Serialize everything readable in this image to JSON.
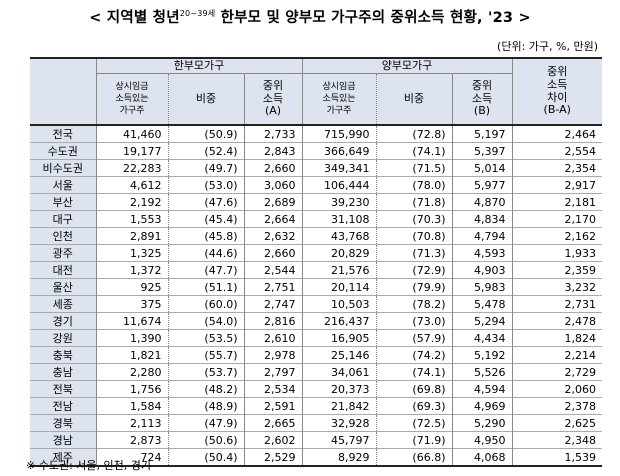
{
  "title": {
    "main": "< 지역별 청년",
    "sup": "20~39세",
    "rest": " 한부모 및 양부모 가구주의 중위소득 현황, '23 >"
  },
  "unit": "(단위: 가구, %, 만원)",
  "headers": {
    "single_group": "한부모가구",
    "double_group": "양부모가구",
    "regular_wage": "상시임금\n소득있는\n가구주",
    "ratio": "비중",
    "median_a": "중위\n소득\n(A)",
    "median_b": "중위\n소득\n(B)",
    "diff": "중위\n소득\n차이\n(B-A)"
  },
  "rows": [
    {
      "region": "전국",
      "s_cnt": "41,460",
      "s_pct": "(50.9)",
      "s_med": "2,733",
      "d_cnt": "715,990",
      "d_pct": "(72.8)",
      "d_med": "5,197",
      "diff": "2,464"
    },
    {
      "region": "수도권",
      "s_cnt": "19,177",
      "s_pct": "(52.4)",
      "s_med": "2,843",
      "d_cnt": "366,649",
      "d_pct": "(74.1)",
      "d_med": "5,397",
      "diff": "2,554"
    },
    {
      "region": "비수도권",
      "s_cnt": "22,283",
      "s_pct": "(49.7)",
      "s_med": "2,660",
      "d_cnt": "349,341",
      "d_pct": "(71.5)",
      "d_med": "5,014",
      "diff": "2,354"
    },
    {
      "region": "서울",
      "s_cnt": "4,612",
      "s_pct": "(53.0)",
      "s_med": "3,060",
      "d_cnt": "106,444",
      "d_pct": "(78.0)",
      "d_med": "5,977",
      "diff": "2,917"
    },
    {
      "region": "부산",
      "s_cnt": "2,192",
      "s_pct": "(47.6)",
      "s_med": "2,689",
      "d_cnt": "39,230",
      "d_pct": "(71.8)",
      "d_med": "4,870",
      "diff": "2,181"
    },
    {
      "region": "대구",
      "s_cnt": "1,553",
      "s_pct": "(45.4)",
      "s_med": "2,664",
      "d_cnt": "31,108",
      "d_pct": "(70.3)",
      "d_med": "4,834",
      "diff": "2,170"
    },
    {
      "region": "인천",
      "s_cnt": "2,891",
      "s_pct": "(45.8)",
      "s_med": "2,632",
      "d_cnt": "43,768",
      "d_pct": "(70.8)",
      "d_med": "4,794",
      "diff": "2,162"
    },
    {
      "region": "광주",
      "s_cnt": "1,325",
      "s_pct": "(44.6)",
      "s_med": "2,660",
      "d_cnt": "20,829",
      "d_pct": "(71.3)",
      "d_med": "4,593",
      "diff": "1,933"
    },
    {
      "region": "대전",
      "s_cnt": "1,372",
      "s_pct": "(47.7)",
      "s_med": "2,544",
      "d_cnt": "21,576",
      "d_pct": "(72.9)",
      "d_med": "4,903",
      "diff": "2,359"
    },
    {
      "region": "울산",
      "s_cnt": "925",
      "s_pct": "(51.1)",
      "s_med": "2,751",
      "d_cnt": "20,114",
      "d_pct": "(79.9)",
      "d_med": "5,983",
      "diff": "3,232"
    },
    {
      "region": "세종",
      "s_cnt": "375",
      "s_pct": "(60.0)",
      "s_med": "2,747",
      "d_cnt": "10,503",
      "d_pct": "(78.2)",
      "d_med": "5,478",
      "diff": "2,731"
    },
    {
      "region": "경기",
      "s_cnt": "11,674",
      "s_pct": "(54.0)",
      "s_med": "2,816",
      "d_cnt": "216,437",
      "d_pct": "(73.0)",
      "d_med": "5,294",
      "diff": "2,478"
    },
    {
      "region": "강원",
      "s_cnt": "1,390",
      "s_pct": "(53.5)",
      "s_med": "2,610",
      "d_cnt": "16,905",
      "d_pct": "(57.9)",
      "d_med": "4,434",
      "diff": "1,824"
    },
    {
      "region": "충북",
      "s_cnt": "1,821",
      "s_pct": "(55.7)",
      "s_med": "2,978",
      "d_cnt": "25,146",
      "d_pct": "(74.2)",
      "d_med": "5,192",
      "diff": "2,214"
    },
    {
      "region": "충남",
      "s_cnt": "2,280",
      "s_pct": "(53.7)",
      "s_med": "2,797",
      "d_cnt": "34,061",
      "d_pct": "(74.1)",
      "d_med": "5,526",
      "diff": "2,729"
    },
    {
      "region": "전북",
      "s_cnt": "1,756",
      "s_pct": "(48.2)",
      "s_med": "2,534",
      "d_cnt": "20,373",
      "d_pct": "(69.8)",
      "d_med": "4,594",
      "diff": "2,060"
    },
    {
      "region": "전남",
      "s_cnt": "1,584",
      "s_pct": "(48.9)",
      "s_med": "2,591",
      "d_cnt": "21,842",
      "d_pct": "(69.3)",
      "d_med": "4,969",
      "diff": "2,378"
    },
    {
      "region": "경북",
      "s_cnt": "2,113",
      "s_pct": "(47.9)",
      "s_med": "2,665",
      "d_cnt": "32,928",
      "d_pct": "(72.5)",
      "d_med": "5,290",
      "diff": "2,625"
    },
    {
      "region": "경남",
      "s_cnt": "2,873",
      "s_pct": "(50.6)",
      "s_med": "2,602",
      "d_cnt": "45,797",
      "d_pct": "(71.9)",
      "d_med": "4,950",
      "diff": "2,348"
    },
    {
      "region": "제주",
      "s_cnt": "724",
      "s_pct": "(50.4)",
      "s_med": "2,529",
      "d_cnt": "8,929",
      "d_pct": "(66.8)",
      "d_med": "4,068",
      "diff": "1,539"
    }
  ],
  "note": "※ 수도권: 서울, 인천, 경기"
}
